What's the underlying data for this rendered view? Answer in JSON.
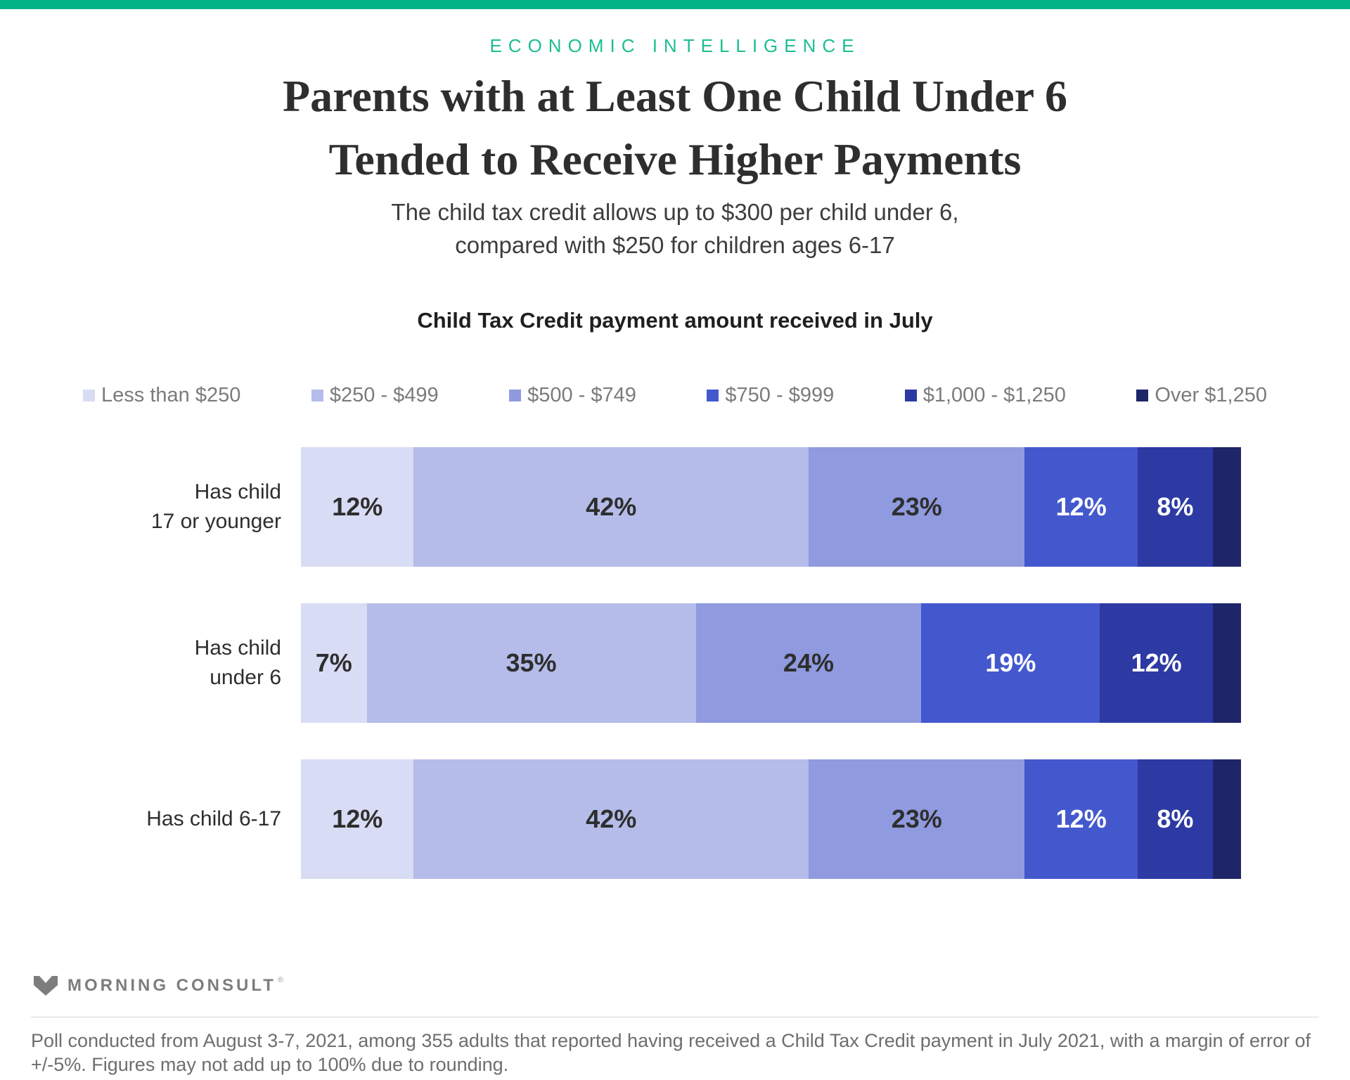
{
  "theme": {
    "topbar_color": "#00B485",
    "kicker_color": "#1DBE92",
    "dark_label_color": "#2e2e2e",
    "light_label_color": "#ffffff"
  },
  "kicker": "ECONOMIC INTELLIGENCE",
  "title": {
    "lines": [
      "Parents with at Least One Child Under 6",
      "Tended to Receive Higher Payments"
    ]
  },
  "subtitle": {
    "lines": [
      "The child tax credit allows up to $300 per child under 6,",
      "compared with $250 for children ages 6-17"
    ]
  },
  "chart_data": {
    "type": "bar",
    "stacked": true,
    "orientation": "horizontal",
    "title": "Child Tax Credit payment amount received in July",
    "legend": [
      "Less than $250",
      "$250 - $499",
      "$500 - $749",
      "$750 - $999",
      "$1,000 - $1,250",
      "Over $1,250"
    ],
    "colors": [
      "#D8DCF4",
      "#B5BCE9",
      "#8F9ADF",
      "#4458CE",
      "#2D3AA3",
      "#1E2669"
    ],
    "legend_position": "top",
    "grid": false,
    "axis_range_percent": [
      0,
      100
    ],
    "categories": [
      "Has child 17 or younger",
      "Has child under 6",
      "Has child 6-17"
    ],
    "rows": [
      {
        "category_lines": [
          "Has child",
          "17 or younger"
        ],
        "segments": [
          {
            "value": 12,
            "label": "12%"
          },
          {
            "value": 42,
            "label": "42%"
          },
          {
            "value": 23,
            "label": "23%"
          },
          {
            "value": 12,
            "label": "12%"
          },
          {
            "value": 8,
            "label": "8%"
          },
          {
            "value": 3,
            "label": ""
          }
        ]
      },
      {
        "category_lines": [
          "Has child",
          "under 6"
        ],
        "segments": [
          {
            "value": 7,
            "label": "7%"
          },
          {
            "value": 35,
            "label": "35%"
          },
          {
            "value": 24,
            "label": "24%"
          },
          {
            "value": 19,
            "label": "19%"
          },
          {
            "value": 12,
            "label": "12%"
          },
          {
            "value": 3,
            "label": ""
          }
        ]
      },
      {
        "category_lines": [
          "Has child 6-17"
        ],
        "segments": [
          {
            "value": 12,
            "label": "12%"
          },
          {
            "value": 42,
            "label": "42%"
          },
          {
            "value": 23,
            "label": "23%"
          },
          {
            "value": 12,
            "label": "12%"
          },
          {
            "value": 8,
            "label": "8%"
          },
          {
            "value": 3,
            "label": ""
          }
        ]
      }
    ]
  },
  "footer": {
    "brand": "MORNING CONSULT",
    "reg_mark": "®",
    "note_lines": [
      "Poll conducted from August 3-7, 2021, among 355 adults that reported having received a Child Tax Credit payment in July 2021, with a margin of error of",
      "+/-5%. Figures may not add up to 100% due to rounding."
    ]
  }
}
